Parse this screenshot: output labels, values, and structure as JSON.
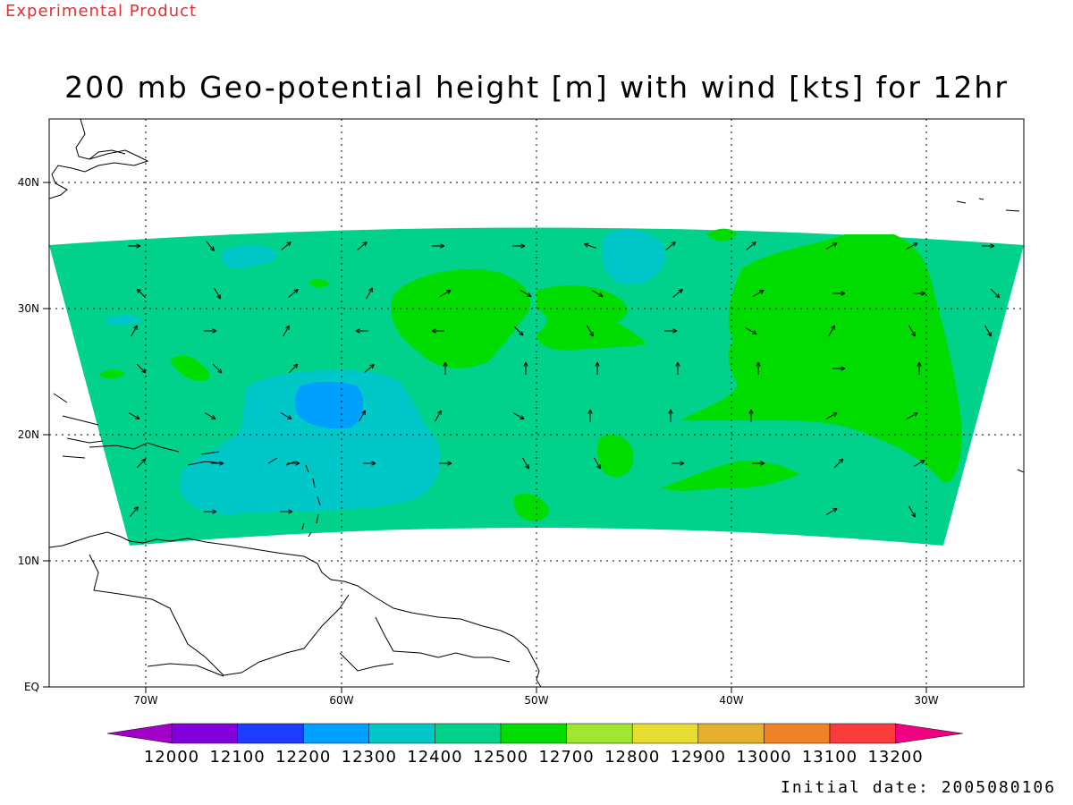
{
  "header": {
    "experimental_label": "Experimental Product",
    "title": "200 mb Geo-potential height [m] with wind [kts] for 12hr"
  },
  "map": {
    "lon_range": [
      -75,
      -25
    ],
    "lat_range": [
      0,
      45
    ],
    "grid": true,
    "lon_ticks": [
      "70W",
      "60W",
      "50W",
      "40W",
      "30W"
    ],
    "lat_ticks": [
      "EQ",
      "10N",
      "20N",
      "30N",
      "40N"
    ]
  },
  "colorbar": {
    "labels": [
      "12000",
      "12100",
      "12200",
      "12300",
      "12400",
      "12500",
      "12700",
      "12800",
      "12900",
      "13000",
      "13100",
      "13200"
    ],
    "colors": [
      "#a000c8",
      "#8200dc",
      "#1e3cff",
      "#00a0ff",
      "#00c8c8",
      "#00d28c",
      "#00dc00",
      "#a0e632",
      "#e6dc32",
      "#e6af2d",
      "#f08228",
      "#fa3c3c",
      "#f00082"
    ]
  },
  "footer": {
    "initial_date": "Initial date: 2005080106"
  }
}
